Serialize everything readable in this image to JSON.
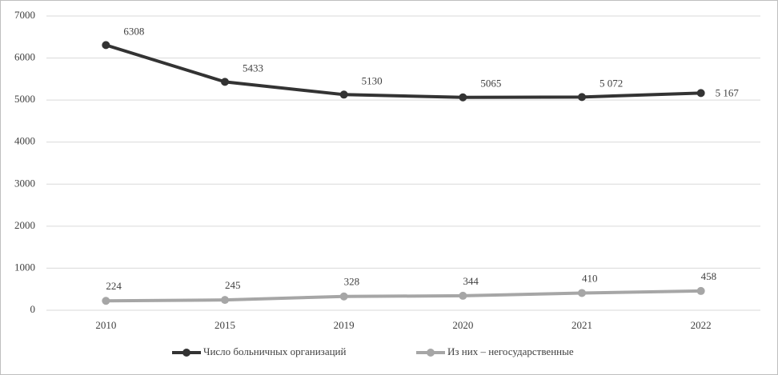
{
  "chart_data": {
    "type": "line",
    "categories": [
      "2010",
      "2015",
      "2019",
      "2020",
      "2021",
      "2022"
    ],
    "series": [
      {
        "name": "Число больничных организаций",
        "color": "#333333",
        "values": [
          6308,
          5433,
          5130,
          5065,
          5072,
          5167
        ],
        "value_labels": [
          "6308",
          "5433",
          "5130",
          "5065",
          "5 072",
          "5 167"
        ]
      },
      {
        "name": "Из них – негосударственные",
        "color": "#a6a6a6",
        "values": [
          224,
          245,
          328,
          344,
          410,
          458
        ]
      }
    ],
    "ylim": [
      0,
      7000
    ],
    "yticks": [
      0,
      1000,
      2000,
      3000,
      4000,
      5000,
      6000,
      7000
    ],
    "grid": true,
    "legend": "bottom"
  }
}
